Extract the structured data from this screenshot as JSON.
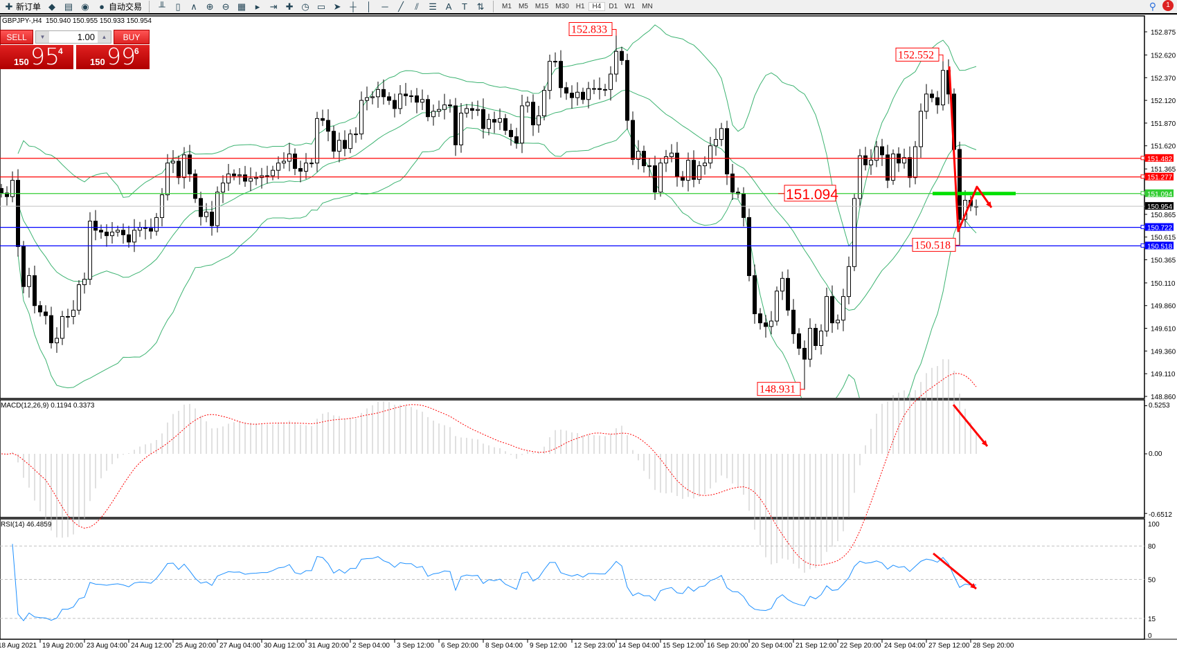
{
  "toolbar": {
    "items": [
      {
        "name": "new-order-button",
        "icon": "new-order-icon",
        "glyph": "✚",
        "label": "新订单"
      },
      {
        "name": "market-watch-button",
        "icon": "gold-icon",
        "glyph": "◆",
        "label": ""
      },
      {
        "name": "data-window-button",
        "icon": "data-window-icon",
        "glyph": "▤",
        "label": ""
      },
      {
        "name": "signals-button",
        "icon": "signal-icon",
        "glyph": "◉",
        "label": ""
      },
      {
        "name": "autotrading-button",
        "icon": "autotrading-icon",
        "glyph": "●",
        "label": "自动交易"
      }
    ],
    "tools": [
      {
        "name": "bar-chart-button",
        "glyph": "╨"
      },
      {
        "name": "candle-chart-button",
        "glyph": "▯"
      },
      {
        "name": "line-chart-button",
        "glyph": "∧"
      },
      {
        "name": "zoom-in-button",
        "glyph": "⊕"
      },
      {
        "name": "zoom-out-button",
        "glyph": "⊖"
      },
      {
        "name": "tile-windows-button",
        "glyph": "▦"
      },
      {
        "name": "autoscroll-button",
        "glyph": "▸"
      },
      {
        "name": "chart-shift-button",
        "glyph": "⇥"
      },
      {
        "name": "indicators-button",
        "glyph": "✚"
      },
      {
        "name": "periods-button",
        "glyph": "◷"
      },
      {
        "name": "templates-button",
        "glyph": "▭"
      },
      {
        "name": "cursor-button",
        "glyph": "➤"
      },
      {
        "name": "crosshair-button",
        "glyph": "┼"
      },
      {
        "name": "vertical-line-button",
        "glyph": "│"
      },
      {
        "name": "horizontal-line-button",
        "glyph": "─"
      },
      {
        "name": "trendline-button",
        "glyph": "╱"
      },
      {
        "name": "equidistant-channel-button",
        "glyph": "⫽"
      },
      {
        "name": "fibonacci-button",
        "glyph": "☰"
      },
      {
        "name": "text-button",
        "glyph": "A"
      },
      {
        "name": "text-label-button",
        "glyph": "T"
      },
      {
        "name": "arrows-button",
        "glyph": "⇅"
      }
    ],
    "timeframes": [
      "M1",
      "M5",
      "M15",
      "M30",
      "H1",
      "H4",
      "D1",
      "W1",
      "MN"
    ],
    "active_timeframe": "H4",
    "notification_count": "1"
  },
  "chart": {
    "title": "GBPJPY-,H4  150.940 150.955 150.933 150.954",
    "oneclick": {
      "sell": "SELL",
      "buy": "BUY",
      "volume": "1.00",
      "sell_small": "150",
      "sell_big": "95",
      "sell_pip": "4",
      "buy_small": "150",
      "buy_big": "99",
      "buy_pip": "6"
    }
  },
  "chart_data": {
    "type": "candlestick",
    "symbol": "GBPJPY-",
    "timeframe": "H4",
    "ylim": [
      148.86,
      152.875
    ],
    "price_ticks": [
      "152.875",
      "152.620",
      "152.370",
      "152.120",
      "151.870",
      "151.620",
      "151.365",
      "150.865",
      "150.615",
      "150.365",
      "150.110",
      "149.860",
      "149.610",
      "149.360",
      "149.110",
      "148.860"
    ],
    "date_labels": [
      "18 Aug 2021",
      "19 Aug 20:00",
      "23 Aug 04:00",
      "24 Aug 12:00",
      "25 Aug 20:00",
      "27 Aug 04:00",
      "30 Aug 12:00",
      "31 Aug 20:00",
      "2 Sep 04:00",
      "3 Sep 12:00",
      "6 Sep 20:00",
      "8 Sep 04:00",
      "9 Sep 12:00",
      "12 Sep 23:00",
      "14 Sep 04:00",
      "15 Sep 12:00",
      "16 Sep 20:00",
      "20 Sep 04:00",
      "21 Sep 12:00",
      "22 Sep 20:00",
      "24 Sep 04:00",
      "27 Sep 12:00",
      "28 Sep 20:00"
    ],
    "closes": [
      151.1,
      151.06,
      151.24,
      150.51,
      150.07,
      150.19,
      149.86,
      149.79,
      149.75,
      149.45,
      149.5,
      149.74,
      149.74,
      149.81,
      150.09,
      150.15,
      150.79,
      150.69,
      150.67,
      150.63,
      150.67,
      150.69,
      150.64,
      150.56,
      150.69,
      150.72,
      150.71,
      150.68,
      150.83,
      151.08,
      151.43,
      151.45,
      151.27,
      151.52,
      151.31,
      151.04,
      150.84,
      150.89,
      150.74,
      151.11,
      151.21,
      151.31,
      151.29,
      151.3,
      151.23,
      151.26,
      151.27,
      151.29,
      151.29,
      151.35,
      151.43,
      151.45,
      151.53,
      151.37,
      151.34,
      151.43,
      151.43,
      151.92,
      151.9,
      151.78,
      151.56,
      151.68,
      151.59,
      151.75,
      151.75,
      152.12,
      152.15,
      152.16,
      152.24,
      152.16,
      152.12,
      152.03,
      152.19,
      152.17,
      152.17,
      152.1,
      152.13,
      151.94,
      152.0,
      152.02,
      152.07,
      152.06,
      151.63,
      151.98,
      152.03,
      152.01,
      152.02,
      151.81,
      151.91,
      151.88,
      151.92,
      151.79,
      151.72,
      151.65,
      152.06,
      152.1,
      151.85,
      151.95,
      152.23,
      152.55,
      152.55,
      152.26,
      152.2,
      152.15,
      152.21,
      152.13,
      152.25,
      152.25,
      152.24,
      152.24,
      152.41,
      152.66,
      152.56,
      151.9,
      151.47,
      151.56,
      151.4,
      151.4,
      151.11,
      151.43,
      151.5,
      151.54,
      151.28,
      151.24,
      151.46,
      151.25,
      151.4,
      151.43,
      151.62,
      151.69,
      151.81,
      151.31,
      151.11,
      151.09,
      150.83,
      150.19,
      149.77,
      149.67,
      149.63,
      149.69,
      150.02,
      150.16,
      149.81,
      149.55,
      149.39,
      149.27,
      149.61,
      149.42,
      149.58,
      149.96,
      149.67,
      149.7,
      149.96,
      150.29,
      151.04,
      151.51,
      151.41,
      151.46,
      151.61,
      151.52,
      151.24,
      151.53,
      151.43,
      151.49,
      151.27,
      151.61,
      152.0,
      152.19,
      152.15,
      152.07,
      152.45,
      152.19,
      151.58,
      150.81,
      151.02,
      150.95,
      150.954
    ],
    "extreme_labels": [
      {
        "text": "152.833",
        "price": 152.833,
        "bar": 111,
        "kind": "high"
      },
      {
        "text": "148.931",
        "price": 148.931,
        "bar": 145,
        "kind": "low"
      },
      {
        "text": "152.552",
        "price": 152.552,
        "bar": 170,
        "kind": "high"
      },
      {
        "text": "150.518",
        "price": 150.518,
        "bar": 173,
        "kind": "low"
      }
    ],
    "hlines": [
      {
        "price": 151.482,
        "label": "151.482",
        "color": "#ff0000"
      },
      {
        "price": 151.277,
        "label": "151.277",
        "color": "#ff0000"
      },
      {
        "price": 151.094,
        "label": "151.094",
        "color": "#32cd32"
      },
      {
        "price": 150.722,
        "label": "150.722",
        "color": "#0000ff"
      },
      {
        "price": 150.518,
        "label": "150.518",
        "color": "#0000ff"
      }
    ],
    "bid_line": {
      "price": 150.954,
      "label": "150.954",
      "color": "#000000"
    },
    "text_annotation": {
      "text": "151.094",
      "price": 151.094
    },
    "bollinger": {
      "period": 20,
      "deviation": 2,
      "color": "#3cb371"
    },
    "macd": {
      "label": "MACD(12,26,9) 0.1194 0.3373",
      "fast": 12,
      "slow": 26,
      "signal": 9,
      "ylim": [
        -0.6512,
        0.5253
      ],
      "ticks": [
        "0.5253",
        "0.00",
        "-0.6512"
      ],
      "hist_color": "#c0c0c0",
      "signal_color": "#ff0000"
    },
    "rsi": {
      "label": "RSI(14) 46.4859",
      "period": 14,
      "levels": [
        80,
        50,
        15
      ],
      "ticks": [
        "100",
        "80",
        "50",
        "15",
        "0"
      ],
      "color": "#1e90ff"
    }
  }
}
